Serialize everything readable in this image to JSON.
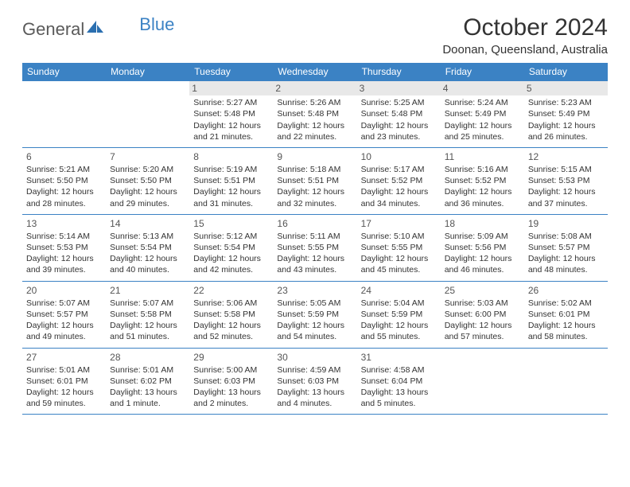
{
  "logo": {
    "text1": "General",
    "text2": "Blue"
  },
  "title": "October 2024",
  "location": "Doonan, Queensland, Australia",
  "header_bg": "#3b82c4",
  "weekdays": [
    "Sunday",
    "Monday",
    "Tuesday",
    "Wednesday",
    "Thursday",
    "Friday",
    "Saturday"
  ],
  "weeks": [
    [
      {
        "day": "",
        "lines": []
      },
      {
        "day": "",
        "lines": []
      },
      {
        "day": "1",
        "shade": true,
        "lines": [
          "Sunrise: 5:27 AM",
          "Sunset: 5:48 PM",
          "Daylight: 12 hours",
          "and 21 minutes."
        ]
      },
      {
        "day": "2",
        "shade": true,
        "lines": [
          "Sunrise: 5:26 AM",
          "Sunset: 5:48 PM",
          "Daylight: 12 hours",
          "and 22 minutes."
        ]
      },
      {
        "day": "3",
        "shade": true,
        "lines": [
          "Sunrise: 5:25 AM",
          "Sunset: 5:48 PM",
          "Daylight: 12 hours",
          "and 23 minutes."
        ]
      },
      {
        "day": "4",
        "shade": true,
        "lines": [
          "Sunrise: 5:24 AM",
          "Sunset: 5:49 PM",
          "Daylight: 12 hours",
          "and 25 minutes."
        ]
      },
      {
        "day": "5",
        "shade": true,
        "lines": [
          "Sunrise: 5:23 AM",
          "Sunset: 5:49 PM",
          "Daylight: 12 hours",
          "and 26 minutes."
        ]
      }
    ],
    [
      {
        "day": "6",
        "lines": [
          "Sunrise: 5:21 AM",
          "Sunset: 5:50 PM",
          "Daylight: 12 hours",
          "and 28 minutes."
        ]
      },
      {
        "day": "7",
        "lines": [
          "Sunrise: 5:20 AM",
          "Sunset: 5:50 PM",
          "Daylight: 12 hours",
          "and 29 minutes."
        ]
      },
      {
        "day": "8",
        "lines": [
          "Sunrise: 5:19 AM",
          "Sunset: 5:51 PM",
          "Daylight: 12 hours",
          "and 31 minutes."
        ]
      },
      {
        "day": "9",
        "lines": [
          "Sunrise: 5:18 AM",
          "Sunset: 5:51 PM",
          "Daylight: 12 hours",
          "and 32 minutes."
        ]
      },
      {
        "day": "10",
        "lines": [
          "Sunrise: 5:17 AM",
          "Sunset: 5:52 PM",
          "Daylight: 12 hours",
          "and 34 minutes."
        ]
      },
      {
        "day": "11",
        "lines": [
          "Sunrise: 5:16 AM",
          "Sunset: 5:52 PM",
          "Daylight: 12 hours",
          "and 36 minutes."
        ]
      },
      {
        "day": "12",
        "lines": [
          "Sunrise: 5:15 AM",
          "Sunset: 5:53 PM",
          "Daylight: 12 hours",
          "and 37 minutes."
        ]
      }
    ],
    [
      {
        "day": "13",
        "lines": [
          "Sunrise: 5:14 AM",
          "Sunset: 5:53 PM",
          "Daylight: 12 hours",
          "and 39 minutes."
        ]
      },
      {
        "day": "14",
        "lines": [
          "Sunrise: 5:13 AM",
          "Sunset: 5:54 PM",
          "Daylight: 12 hours",
          "and 40 minutes."
        ]
      },
      {
        "day": "15",
        "lines": [
          "Sunrise: 5:12 AM",
          "Sunset: 5:54 PM",
          "Daylight: 12 hours",
          "and 42 minutes."
        ]
      },
      {
        "day": "16",
        "lines": [
          "Sunrise: 5:11 AM",
          "Sunset: 5:55 PM",
          "Daylight: 12 hours",
          "and 43 minutes."
        ]
      },
      {
        "day": "17",
        "lines": [
          "Sunrise: 5:10 AM",
          "Sunset: 5:55 PM",
          "Daylight: 12 hours",
          "and 45 minutes."
        ]
      },
      {
        "day": "18",
        "lines": [
          "Sunrise: 5:09 AM",
          "Sunset: 5:56 PM",
          "Daylight: 12 hours",
          "and 46 minutes."
        ]
      },
      {
        "day": "19",
        "lines": [
          "Sunrise: 5:08 AM",
          "Sunset: 5:57 PM",
          "Daylight: 12 hours",
          "and 48 minutes."
        ]
      }
    ],
    [
      {
        "day": "20",
        "lines": [
          "Sunrise: 5:07 AM",
          "Sunset: 5:57 PM",
          "Daylight: 12 hours",
          "and 49 minutes."
        ]
      },
      {
        "day": "21",
        "lines": [
          "Sunrise: 5:07 AM",
          "Sunset: 5:58 PM",
          "Daylight: 12 hours",
          "and 51 minutes."
        ]
      },
      {
        "day": "22",
        "lines": [
          "Sunrise: 5:06 AM",
          "Sunset: 5:58 PM",
          "Daylight: 12 hours",
          "and 52 minutes."
        ]
      },
      {
        "day": "23",
        "lines": [
          "Sunrise: 5:05 AM",
          "Sunset: 5:59 PM",
          "Daylight: 12 hours",
          "and 54 minutes."
        ]
      },
      {
        "day": "24",
        "lines": [
          "Sunrise: 5:04 AM",
          "Sunset: 5:59 PM",
          "Daylight: 12 hours",
          "and 55 minutes."
        ]
      },
      {
        "day": "25",
        "lines": [
          "Sunrise: 5:03 AM",
          "Sunset: 6:00 PM",
          "Daylight: 12 hours",
          "and 57 minutes."
        ]
      },
      {
        "day": "26",
        "lines": [
          "Sunrise: 5:02 AM",
          "Sunset: 6:01 PM",
          "Daylight: 12 hours",
          "and 58 minutes."
        ]
      }
    ],
    [
      {
        "day": "27",
        "lines": [
          "Sunrise: 5:01 AM",
          "Sunset: 6:01 PM",
          "Daylight: 12 hours",
          "and 59 minutes."
        ]
      },
      {
        "day": "28",
        "lines": [
          "Sunrise: 5:01 AM",
          "Sunset: 6:02 PM",
          "Daylight: 13 hours",
          "and 1 minute."
        ]
      },
      {
        "day": "29",
        "lines": [
          "Sunrise: 5:00 AM",
          "Sunset: 6:03 PM",
          "Daylight: 13 hours",
          "and 2 minutes."
        ]
      },
      {
        "day": "30",
        "lines": [
          "Sunrise: 4:59 AM",
          "Sunset: 6:03 PM",
          "Daylight: 13 hours",
          "and 4 minutes."
        ]
      },
      {
        "day": "31",
        "lines": [
          "Sunrise: 4:58 AM",
          "Sunset: 6:04 PM",
          "Daylight: 13 hours",
          "and 5 minutes."
        ]
      },
      {
        "day": "",
        "lines": []
      },
      {
        "day": "",
        "lines": []
      }
    ]
  ]
}
